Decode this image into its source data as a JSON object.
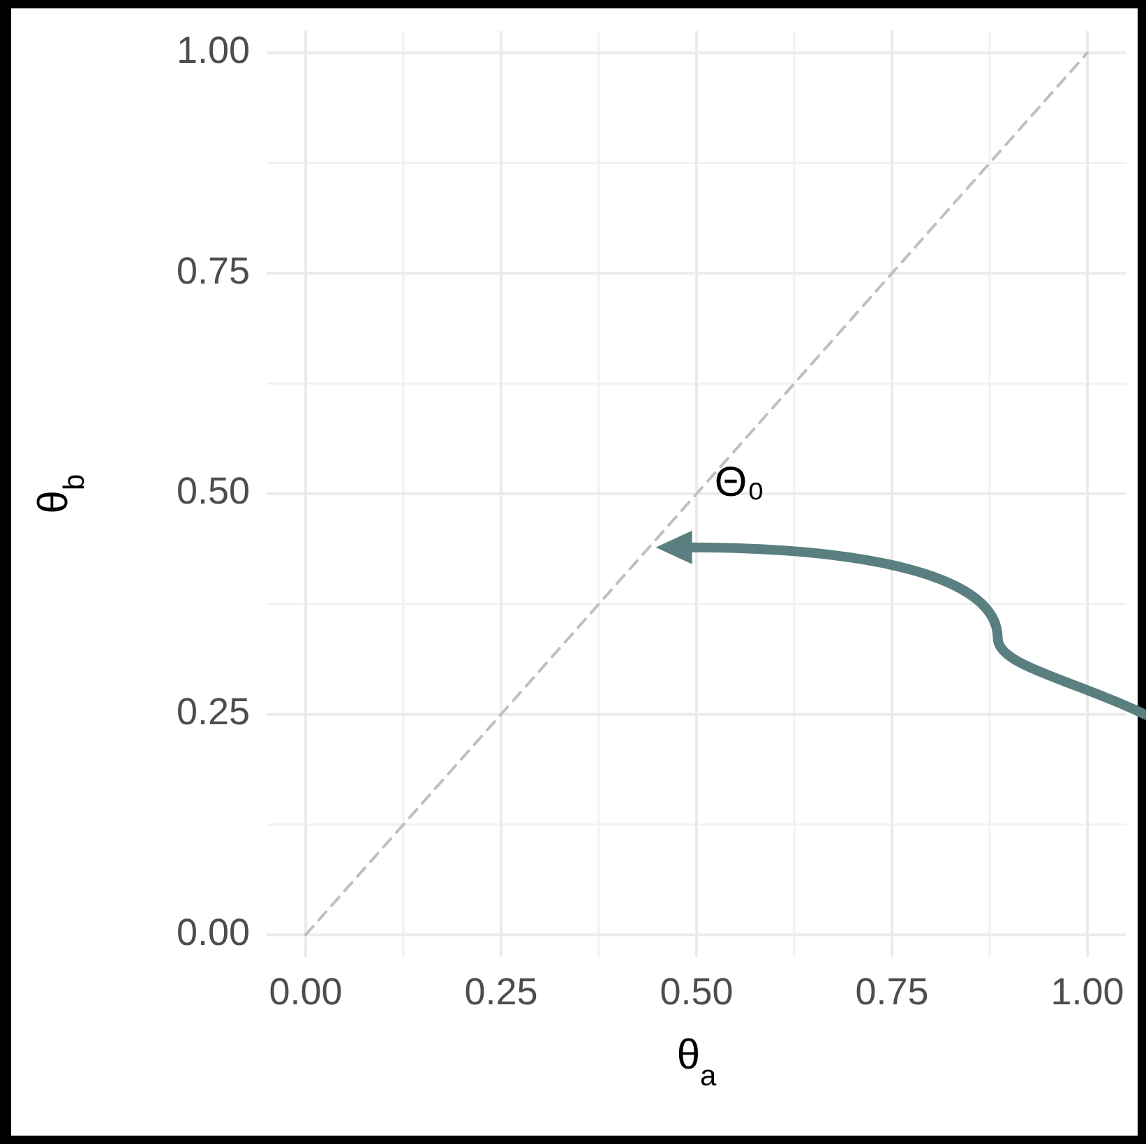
{
  "chart_data": {
    "type": "line",
    "xlabel": "θ$_{a}$",
    "ylabel": "θ$_{b}$",
    "series": [
      {
        "x": [
          0,
          1
        ],
        "values": [
          0,
          1
        ],
        "color": "#bfbfbf",
        "line_style": "dashed"
      }
    ],
    "xlim": [
      -0.05,
      1.05
    ],
    "ylim": [
      -0.025,
      1.025
    ],
    "xticks": [
      {
        "value": 0,
        "label": "0.00"
      },
      {
        "value": 0.25,
        "label": "0.25"
      },
      {
        "value": 0.5,
        "label": "0.50"
      },
      {
        "value": 0.75,
        "label": "0.75"
      },
      {
        "value": 1,
        "label": "1.00"
      }
    ],
    "yticks": [
      {
        "value": 0,
        "label": "0.00"
      },
      {
        "value": 0.25,
        "label": "0.25"
      },
      {
        "value": 0.5,
        "label": "0.50"
      },
      {
        "value": 0.75,
        "label": "0.75"
      },
      {
        "value": 1,
        "label": "1.00"
      }
    ],
    "grid": true,
    "annotations": [
      "Θ₀"
    ]
  }
}
